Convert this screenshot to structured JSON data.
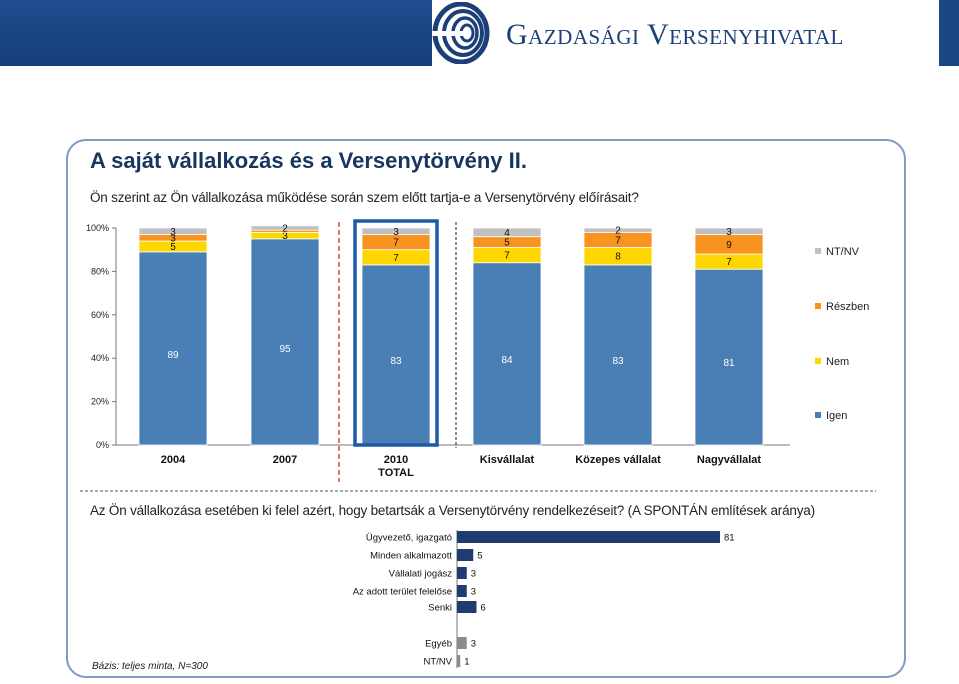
{
  "header": {
    "logo_text": "Gazdasági Versenyhivatal",
    "colors": {
      "band": "#1f4d8f",
      "logo": "#1d3f78"
    }
  },
  "slide": {
    "title": "A saját vállalkozás és a Versenytörvény II.",
    "question1": "Ön szerint az Ön vállalkozása működése során szem előtt tartja-e a Versenytörvény előírásait?",
    "question2": "Az Ön vállalkozása esetében ki felel azért, hogy betartsák a Versenytörvény rendelkezéseit? (A SPONTÁN említések aránya)",
    "base_note": "Bázis: teljes minta, N=300"
  },
  "chart_data": [
    {
      "type": "bar",
      "stacked": true,
      "categories": [
        "2004",
        "2007",
        "2010\nTOTAL",
        "Kisvállalat",
        "Közepes vállalat",
        "Nagyvállalat"
      ],
      "highlighted_category": "2010\nTOTAL",
      "series": [
        {
          "name": "Igen",
          "color": "#4a7fb5",
          "values": [
            89,
            95,
            83,
            84,
            83,
            81
          ]
        },
        {
          "name": "Nem",
          "color": "#ffd700",
          "values": [
            5,
            3,
            7,
            7,
            8,
            7
          ]
        },
        {
          "name": "Részben",
          "color": "#f7931e",
          "values": [
            3,
            1,
            7,
            5,
            7,
            9
          ]
        },
        {
          "name": "NT/NV",
          "color": "#c0c0c0",
          "values": [
            3,
            2,
            3,
            4,
            2,
            3
          ]
        }
      ],
      "labels": [
        {
          "Igen": "89",
          "Nem": "5",
          "Részben": "3",
          "NT/NV": "3"
        },
        {
          "Igen": "95",
          "Nem": "3",
          "Részben": "",
          "NT/NV": "2"
        },
        {
          "Igen": "83",
          "Nem": "7",
          "Részben": "7",
          "NT/NV": "3"
        },
        {
          "Igen": "84",
          "Nem": "7",
          "Részben": "5",
          "NT/NV": "4"
        },
        {
          "Igen": "83",
          "Nem": "8",
          "Részben": "7",
          "NT/NV": "2"
        },
        {
          "Igen": "81",
          "Nem": "7",
          "Részben": "9",
          "NT/NV": "3"
        }
      ],
      "y_ticks": [
        "0%",
        "20%",
        "40%",
        "60%",
        "80%",
        "100%"
      ],
      "ylim": [
        0,
        100
      ],
      "legend_order": [
        "NT/NV",
        "Részben",
        "Nem",
        "Igen"
      ],
      "legend_position": "right"
    },
    {
      "type": "bar",
      "orientation": "horizontal",
      "categories": [
        "Ügyvezető, igazgató",
        "Minden alkalmazott",
        "Vállalati jogász",
        "Az adott terület felelőse",
        "Senki",
        "Egyéb",
        "NT/NV"
      ],
      "values": [
        81,
        5,
        3,
        3,
        6,
        3,
        1
      ],
      "colors": [
        "#1f3c70",
        "#1f3c70",
        "#1f3c70",
        "#1f3c70",
        "#1f3c70",
        "#8c8c8c",
        "#8c8c8c"
      ],
      "xlim": [
        0,
        81
      ]
    }
  ]
}
